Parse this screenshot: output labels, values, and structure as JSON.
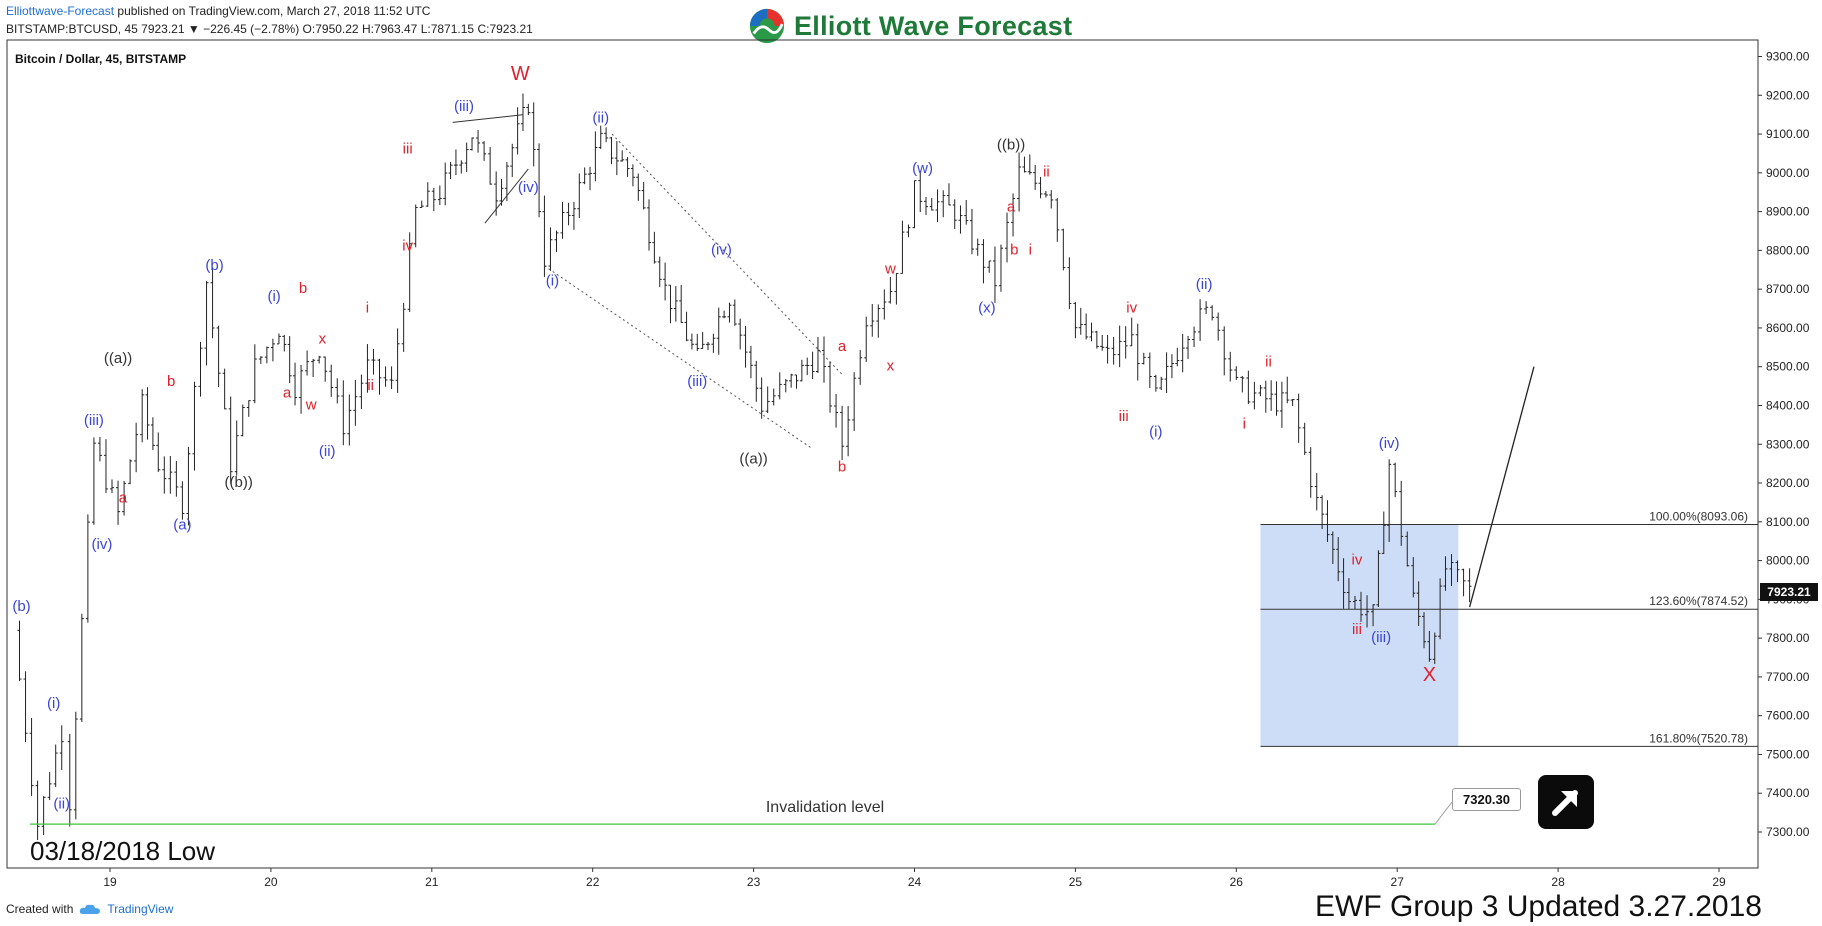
{
  "header": {
    "site": "Elliottwave-Forecast",
    "published": "published on TradingView.com, March 27, 2018 11:52 UTC"
  },
  "ticker": {
    "symbol": "BITSTAMP:BTCUSD, 45",
    "last": "7923.21",
    "change_arrow": "▼",
    "change": "−226.45 (−2.78%)",
    "o_label": "O:",
    "o_value": "7950.22",
    "h_label": "H:",
    "h_value": "7963.47",
    "l_label": "L:",
    "l_value": "7871.15",
    "c_label": "C:",
    "c_value": "7923.21"
  },
  "brand": {
    "name": "Elliott Wave Forecast"
  },
  "chart_title": "Bitcoin / Dollar, 45, BITSTAMP",
  "footer": {
    "created_with": "Created with",
    "tradingview": "TradingView",
    "group_note": "EWF Group 3 Updated 3.27.2018"
  },
  "low_note": "03/18/2018 Low",
  "invalidation_price": "7320.30",
  "last_price_tag": "7923.21",
  "colors": {
    "blue_label": "#3b44d8",
    "red_label": "#e0202b",
    "black_label": "#333333",
    "fib_box": "#c9d9f6",
    "invalidation_line": "#3ec43e",
    "bar": "#222222"
  },
  "chart_data": {
    "type": "ohlc",
    "symbol": "BTCUSD",
    "timeframe": "45",
    "exchange": "BITSTAMP",
    "ylim": [
      7200,
      9350
    ],
    "y_ticks": [
      "9300.00",
      "9200.00",
      "9100.00",
      "9000.00",
      "8900.00",
      "8800.00",
      "8700.00",
      "8600.00",
      "8500.00",
      "8400.00",
      "8300.00",
      "8200.00",
      "8100.00",
      "8000.00",
      "7900.00",
      "7800.00",
      "7700.00",
      "7600.00",
      "7500.00",
      "7400.00",
      "7300.00"
    ],
    "x_ticks": [
      "19",
      "20",
      "21",
      "22",
      "23",
      "24",
      "25",
      "26",
      "27",
      "28",
      "29"
    ],
    "price_path": [
      {
        "day": 18.4,
        "price": 7820
      },
      {
        "day": 18.55,
        "price": 7320
      },
      {
        "day": 18.7,
        "price": 7560
      },
      {
        "day": 18.75,
        "price": 7380
      },
      {
        "day": 18.9,
        "price": 8300
      },
      {
        "day": 19.05,
        "price": 8120
      },
      {
        "day": 19.2,
        "price": 8400
      },
      {
        "day": 19.3,
        "price": 8250
      },
      {
        "day": 19.45,
        "price": 8150
      },
      {
        "day": 19.6,
        "price": 8720
      },
      {
        "day": 19.75,
        "price": 8250
      },
      {
        "day": 19.9,
        "price": 8500
      },
      {
        "day": 20.05,
        "price": 8600
      },
      {
        "day": 20.15,
        "price": 8450
      },
      {
        "day": 20.3,
        "price": 8550
      },
      {
        "day": 20.45,
        "price": 8350
      },
      {
        "day": 20.6,
        "price": 8500
      },
      {
        "day": 20.75,
        "price": 8450
      },
      {
        "day": 20.9,
        "price": 8900
      },
      {
        "day": 21.05,
        "price": 8950
      },
      {
        "day": 21.25,
        "price": 9100
      },
      {
        "day": 21.4,
        "price": 8950
      },
      {
        "day": 21.6,
        "price": 9180
      },
      {
        "day": 21.7,
        "price": 8780
      },
      {
        "day": 21.85,
        "price": 8900
      },
      {
        "day": 22.05,
        "price": 9080
      },
      {
        "day": 22.25,
        "price": 9000
      },
      {
        "day": 22.45,
        "price": 8700
      },
      {
        "day": 22.65,
        "price": 8520
      },
      {
        "day": 22.85,
        "price": 8680
      },
      {
        "day": 23.05,
        "price": 8400
      },
      {
        "day": 23.2,
        "price": 8450
      },
      {
        "day": 23.4,
        "price": 8530
      },
      {
        "day": 23.55,
        "price": 8300
      },
      {
        "day": 23.7,
        "price": 8630
      },
      {
        "day": 23.85,
        "price": 8700
      },
      {
        "day": 24.0,
        "price": 8950
      },
      {
        "day": 24.25,
        "price": 8900
      },
      {
        "day": 24.5,
        "price": 8720
      },
      {
        "day": 24.65,
        "price": 9000
      },
      {
        "day": 24.85,
        "price": 8950
      },
      {
        "day": 25.0,
        "price": 8600
      },
      {
        "day": 25.2,
        "price": 8530
      },
      {
        "day": 25.35,
        "price": 8570
      },
      {
        "day": 25.5,
        "price": 8420
      },
      {
        "day": 25.7,
        "price": 8600
      },
      {
        "day": 25.85,
        "price": 8650
      },
      {
        "day": 26.0,
        "price": 8450
      },
      {
        "day": 26.15,
        "price": 8420
      },
      {
        "day": 26.35,
        "price": 8400
      },
      {
        "day": 26.5,
        "price": 8150
      },
      {
        "day": 26.7,
        "price": 7900
      },
      {
        "day": 26.85,
        "price": 7860
      },
      {
        "day": 26.95,
        "price": 8250
      },
      {
        "day": 27.1,
        "price": 7900
      },
      {
        "day": 27.2,
        "price": 7760
      },
      {
        "day": 27.3,
        "price": 7980
      },
      {
        "day": 27.45,
        "price": 7923
      }
    ],
    "fibonacci_levels": [
      {
        "label": "100.00%(8093.06)",
        "price": 8093.06
      },
      {
        "label": "123.60%(7874.52)",
        "price": 7874.52
      },
      {
        "label": "161.80%(7520.78)",
        "price": 7520.78
      }
    ],
    "fib_zone": {
      "day_start": 26.15,
      "day_end": 27.38,
      "price_top": 8093.06,
      "price_bottom": 7520.78
    },
    "invalidation": {
      "label": "Invalidation level",
      "price": 7320.3
    },
    "projection": {
      "from_day": 27.45,
      "from_price": 7880,
      "to_day": 27.85,
      "to_price": 8500
    },
    "wave_labels": [
      {
        "text": "(b)",
        "day": 18.45,
        "price": 7870,
        "color": "blue"
      },
      {
        "text": "(i)",
        "day": 18.65,
        "price": 7620,
        "color": "blue"
      },
      {
        "text": "(ii)",
        "day": 18.7,
        "price": 7360,
        "color": "blue"
      },
      {
        "text": "(iii)",
        "day": 18.9,
        "price": 8350,
        "color": "blue"
      },
      {
        "text": "(iv)",
        "day": 18.95,
        "price": 8030,
        "color": "blue"
      },
      {
        "text": "((a))",
        "day": 19.05,
        "price": 8510,
        "color": "black"
      },
      {
        "text": "a",
        "day": 19.08,
        "price": 8150,
        "color": "red"
      },
      {
        "text": "b",
        "day": 19.38,
        "price": 8450,
        "color": "red"
      },
      {
        "text": "(a)",
        "day": 19.45,
        "price": 8080,
        "color": "blue"
      },
      {
        "text": "(b)",
        "day": 19.65,
        "price": 8750,
        "color": "blue"
      },
      {
        "text": "((b))",
        "day": 19.8,
        "price": 8190,
        "color": "black"
      },
      {
        "text": "(i)",
        "day": 20.02,
        "price": 8670,
        "color": "blue"
      },
      {
        "text": "a",
        "day": 20.1,
        "price": 8420,
        "color": "red"
      },
      {
        "text": "b",
        "day": 20.2,
        "price": 8690,
        "color": "red"
      },
      {
        "text": "w",
        "day": 20.25,
        "price": 8390,
        "color": "red"
      },
      {
        "text": "x",
        "day": 20.32,
        "price": 8560,
        "color": "red"
      },
      {
        "text": "(ii)",
        "day": 20.35,
        "price": 8270,
        "color": "blue"
      },
      {
        "text": "i",
        "day": 20.6,
        "price": 8640,
        "color": "red"
      },
      {
        "text": "ii",
        "day": 20.62,
        "price": 8440,
        "color": "red"
      },
      {
        "text": "iii",
        "day": 20.85,
        "price": 9050,
        "color": "red"
      },
      {
        "text": "iv",
        "day": 20.85,
        "price": 8800,
        "color": "red"
      },
      {
        "text": "(iii)",
        "day": 21.2,
        "price": 9160,
        "color": "blue"
      },
      {
        "text": "W",
        "day": 21.55,
        "price": 9240,
        "color": "red"
      },
      {
        "text": "(iv)",
        "day": 21.6,
        "price": 8950,
        "color": "blue"
      },
      {
        "text": "(i)",
        "day": 21.75,
        "price": 8710,
        "color": "blue"
      },
      {
        "text": "(ii)",
        "day": 22.05,
        "price": 9130,
        "color": "blue"
      },
      {
        "text": "(iv)",
        "day": 22.8,
        "price": 8790,
        "color": "blue"
      },
      {
        "text": "(iii)",
        "day": 22.65,
        "price": 8450,
        "color": "blue"
      },
      {
        "text": "((a))",
        "day": 23.0,
        "price": 8250,
        "color": "black"
      },
      {
        "text": "a",
        "day": 23.55,
        "price": 8540,
        "color": "red"
      },
      {
        "text": "b",
        "day": 23.55,
        "price": 8230,
        "color": "red"
      },
      {
        "text": "w",
        "day": 23.85,
        "price": 8740,
        "color": "red"
      },
      {
        "text": "x",
        "day": 23.85,
        "price": 8490,
        "color": "red"
      },
      {
        "text": "(w)",
        "day": 24.05,
        "price": 9000,
        "color": "blue"
      },
      {
        "text": "(x)",
        "day": 24.45,
        "price": 8640,
        "color": "blue"
      },
      {
        "text": "a",
        "day": 24.6,
        "price": 8900,
        "color": "red"
      },
      {
        "text": "b",
        "day": 24.62,
        "price": 8790,
        "color": "red"
      },
      {
        "text": "((b))",
        "day": 24.6,
        "price": 9060,
        "color": "black"
      },
      {
        "text": "i",
        "day": 24.72,
        "price": 8790,
        "color": "red"
      },
      {
        "text": "ii",
        "day": 24.82,
        "price": 8990,
        "color": "red"
      },
      {
        "text": "iii",
        "day": 25.3,
        "price": 8360,
        "color": "red"
      },
      {
        "text": "iv",
        "day": 25.35,
        "price": 8640,
        "color": "red"
      },
      {
        "text": "(i)",
        "day": 25.5,
        "price": 8320,
        "color": "blue"
      },
      {
        "text": "(ii)",
        "day": 25.8,
        "price": 8700,
        "color": "blue"
      },
      {
        "text": "i",
        "day": 26.05,
        "price": 8340,
        "color": "red"
      },
      {
        "text": "ii",
        "day": 26.2,
        "price": 8500,
        "color": "red"
      },
      {
        "text": "iii",
        "day": 26.75,
        "price": 7810,
        "color": "red"
      },
      {
        "text": "iv",
        "day": 26.75,
        "price": 7990,
        "color": "red"
      },
      {
        "text": "(iii)",
        "day": 26.9,
        "price": 7790,
        "color": "blue"
      },
      {
        "text": "(iv)",
        "day": 26.95,
        "price": 8290,
        "color": "blue"
      },
      {
        "text": "X",
        "day": 27.2,
        "price": 7690,
        "color": "red"
      }
    ]
  }
}
